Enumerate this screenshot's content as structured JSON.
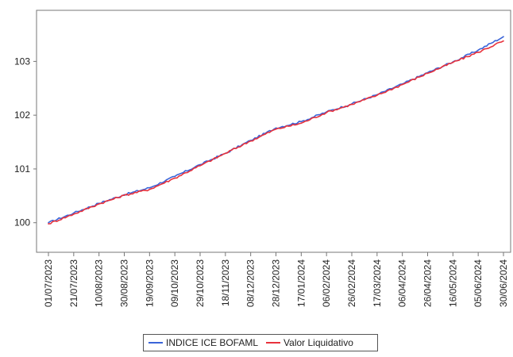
{
  "chart_data": {
    "type": "line",
    "title": "",
    "xlabel": "",
    "ylabel": "",
    "ylim": [
      99.45,
      103.95
    ],
    "y_ticks": [
      "100",
      "101",
      "102",
      "103"
    ],
    "x_tick_labels": [
      "01/07/2023",
      "21/07/2023",
      "10/08/2023",
      "30/08/2023",
      "19/09/2023",
      "09/10/2023",
      "29/10/2023",
      "18/11/2023",
      "08/12/2023",
      "28/12/2023",
      "17/01/2024",
      "06/02/2024",
      "26/02/2024",
      "17/03/2024",
      "06/04/2024",
      "26/04/2024",
      "16/05/2024",
      "05/06/2024",
      "30/06/2024"
    ],
    "grid": false,
    "legend_position": "bottom",
    "x": [
      "01/07/2023",
      "21/07/2023",
      "10/08/2023",
      "30/08/2023",
      "19/09/2023",
      "09/10/2023",
      "29/10/2023",
      "18/11/2023",
      "08/12/2023",
      "28/12/2023",
      "17/01/2024",
      "06/02/2024",
      "26/02/2024",
      "17/03/2024",
      "06/04/2024",
      "26/04/2024",
      "16/05/2024",
      "05/06/2024",
      "30/06/2024"
    ],
    "series": [
      {
        "name": "INDICE ICE BOFAML",
        "color": "#3a64d8",
        "values": [
          100.0,
          100.18,
          100.36,
          100.52,
          100.65,
          100.86,
          101.08,
          101.29,
          101.53,
          101.76,
          101.88,
          102.06,
          102.21,
          102.38,
          102.58,
          102.79,
          102.99,
          103.21,
          103.46
        ]
      },
      {
        "name": "Valor Liquidativo",
        "color": "#e8323c",
        "values": [
          99.98,
          100.16,
          100.35,
          100.51,
          100.62,
          100.83,
          101.06,
          101.29,
          101.52,
          101.74,
          101.85,
          102.05,
          102.2,
          102.37,
          102.57,
          102.78,
          102.98,
          103.17,
          103.38
        ]
      }
    ]
  }
}
